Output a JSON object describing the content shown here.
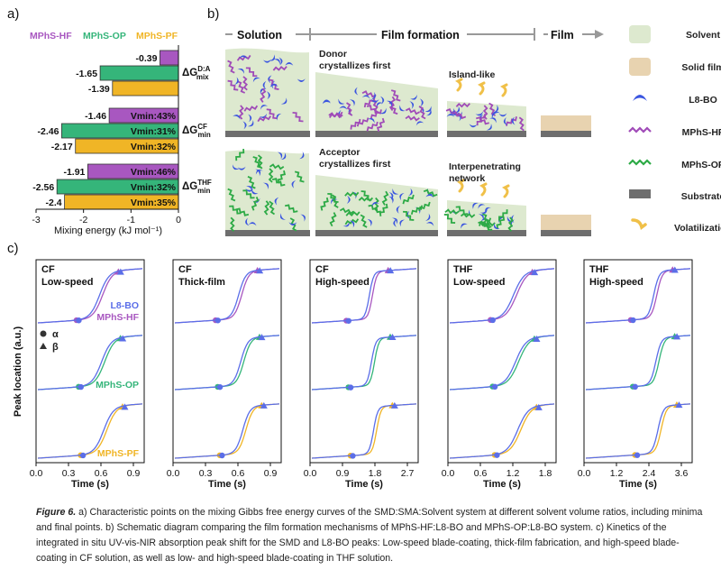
{
  "panel_a": {
    "label": "a)",
    "legend": [
      {
        "name": "MPhS-HF",
        "color": "#a857c0"
      },
      {
        "name": "MPhS-OP",
        "color": "#35b57a"
      },
      {
        "name": "MPhS-PF",
        "color": "#f0b526"
      }
    ],
    "chart_data": {
      "type": "bar",
      "orientation": "horizontal",
      "xlabel": "Mixing energy (kJ mol⁻¹)",
      "xlim": [
        -3,
        0
      ],
      "xticks": [
        "-3",
        "-2",
        "-1",
        "0"
      ],
      "groups": [
        {
          "label_main": "ΔG",
          "sup": "D:A",
          "sub": "mix",
          "bars": [
            {
              "series": "MPhS-HF",
              "value": -0.39,
              "value_label": "-0.39",
              "annotation": ""
            },
            {
              "series": "MPhS-OP",
              "value": -1.65,
              "value_label": "-1.65",
              "annotation": ""
            },
            {
              "series": "MPhS-PF",
              "value": -1.39,
              "value_label": "-1.39",
              "annotation": ""
            }
          ]
        },
        {
          "label_main": "ΔG",
          "sup": "CF",
          "sub": "min",
          "bars": [
            {
              "series": "MPhS-HF",
              "value": -1.46,
              "value_label": "-1.46",
              "annotation": "Vmin:43%"
            },
            {
              "series": "MPhS-OP",
              "value": -2.46,
              "value_label": "-2.46",
              "annotation": "Vmin:31%"
            },
            {
              "series": "MPhS-PF",
              "value": -2.17,
              "value_label": "-2.17",
              "annotation": "Vmin:32%"
            }
          ]
        },
        {
          "label_main": "ΔG",
          "sup": "THF",
          "sub": "min",
          "bars": [
            {
              "series": "MPhS-HF",
              "value": -1.91,
              "value_label": "-1.91",
              "annotation": "Vmin:46%"
            },
            {
              "series": "MPhS-OP",
              "value": -2.56,
              "value_label": "-2.56",
              "annotation": "Vmin:32%"
            },
            {
              "series": "MPhS-PF",
              "value": -2.4,
              "value_label": "-2.4",
              "annotation": "Vmin:35%"
            }
          ]
        }
      ]
    }
  },
  "panel_b": {
    "label": "b)",
    "stages": [
      "Solution",
      "Film formation",
      "Film"
    ],
    "top_row": {
      "caption_line1": "Donor",
      "caption_line2": "crystallizes first",
      "result": "Island-like"
    },
    "bottom_row": {
      "caption_line1": "Acceptor",
      "caption_line2": "crystallizes first",
      "result_line1": "Interpenetrating",
      "result_line2": "network"
    },
    "legend": [
      "Solvent",
      "Solid film",
      "L8-BO",
      "MPhS-HF",
      "MPhS-OP",
      "Substrate",
      "Volatilization"
    ],
    "colors": {
      "solvent": "#dde9cf",
      "solid_film": "#e8d3b0",
      "l8bo": "#3a55e0",
      "hf": "#a04bb8",
      "op": "#2daa46",
      "substrate": "#6e6e6e",
      "vol": "#f0c048"
    }
  },
  "panel_c": {
    "label": "c)",
    "ylabel": "Peak location (a.u.)",
    "xlabel": "Time (s)",
    "series_labels": {
      "l8bo": "L8-BO",
      "hf": "MPhS-HF",
      "op": "MPhS-OP",
      "pf": "MPhS-PF"
    },
    "markers": {
      "alpha": "α",
      "beta": "β"
    },
    "colors": {
      "l8bo": "#5b6ee8",
      "hf": "#a857c0",
      "op": "#35b57a",
      "pf": "#f0b526"
    },
    "subplots": [
      {
        "solvent": "CF",
        "mode": "Low-speed",
        "ticks": [
          "0.0",
          "0.3",
          "0.6",
          "0.9"
        ],
        "tmax": 1.0
      },
      {
        "solvent": "CF",
        "mode": "Thick-film",
        "ticks": [
          "0.0",
          "0.3",
          "0.6",
          "0.9"
        ],
        "tmax": 1.0
      },
      {
        "solvent": "CF",
        "mode": "High-speed",
        "ticks": [
          "0.0",
          "0.9",
          "1.8",
          "2.7"
        ],
        "tmax": 3.0
      },
      {
        "solvent": "THF",
        "mode": "Low-speed",
        "ticks": [
          "0.0",
          "0.6",
          "1.2",
          "1.8"
        ],
        "tmax": 2.0
      },
      {
        "solvent": "THF",
        "mode": "High-speed",
        "ticks": [
          "0.0",
          "1.2",
          "2.4",
          "3.6"
        ],
        "tmax": 4.0
      }
    ]
  },
  "caption": {
    "fig": "Figure 6.",
    "text": " a) Characteristic points on the mixing Gibbs free energy curves of the SMD:SMA:Solvent system at different solvent volume ratios, including minima and final points. b) Schematic diagram comparing the film formation mechanisms of MPhS-HF:L8-BO and MPhS-OP:L8-BO system. c) Kinetics of the integrated in situ UV-vis-NIR absorption peak shift for the SMD and L8-BO peaks: Low-speed blade-coating, thick-film fabrication, and high-speed blade-coating in CF solution, as well as low- and high-speed blade-coating in THF solution."
  }
}
